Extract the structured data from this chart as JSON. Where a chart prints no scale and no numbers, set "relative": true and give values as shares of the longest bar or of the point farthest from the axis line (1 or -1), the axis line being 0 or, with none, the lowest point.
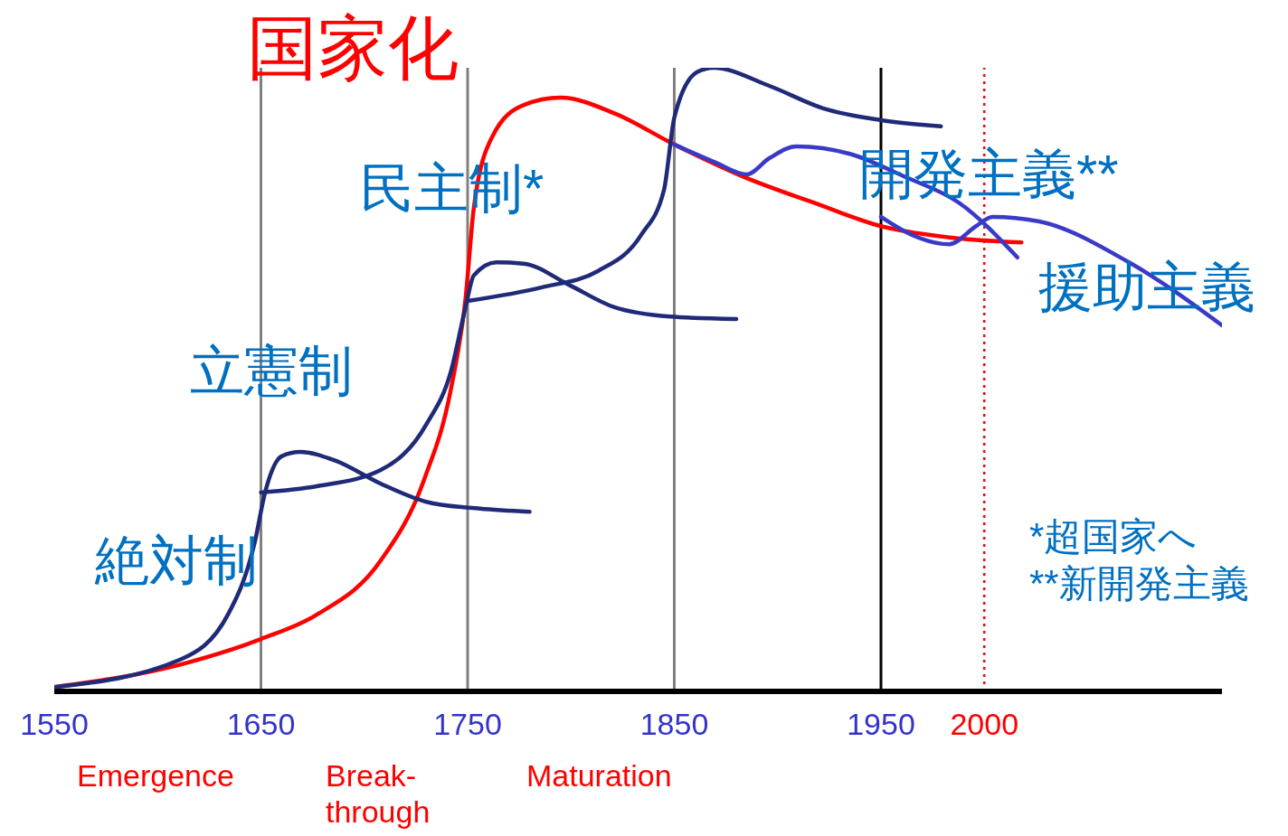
{
  "chart_data": {
    "type": "line",
    "title": "国家化",
    "relative": true,
    "xlim": [
      1550,
      2115
    ],
    "xticks": [
      1550,
      1650,
      1750,
      1850,
      1950,
      2000
    ],
    "series": [
      {
        "color": "#ff0000",
        "x": [
          1550,
          1611,
          1650,
          1677,
          1708,
          1729,
          1742,
          1749,
          1753,
          1762,
          1777,
          1795,
          1821,
          1850,
          1883,
          1918,
          1950,
          1983,
          2018
        ],
        "values": [
          0.007,
          0.043,
          0.084,
          0.123,
          0.21,
          0.34,
          0.486,
          0.63,
          0.775,
          0.89,
          0.94,
          0.952,
          0.927,
          0.877,
          0.826,
          0.783,
          0.746,
          0.728,
          0.72
        ]
      },
      {
        "color": "#1f2a78",
        "x": [
          1550,
          1611,
          1634,
          1647,
          1652,
          1660,
          1669,
          1686,
          1708,
          1730,
          1756,
          1780
        ],
        "values": [
          0.007,
          0.051,
          0.123,
          0.239,
          0.319,
          0.377,
          0.384,
          0.37,
          0.333,
          0.304,
          0.293,
          0.288
        ]
      },
      {
        "color": "#1f2a78",
        "x": [
          1650,
          1677,
          1708,
          1730,
          1742,
          1749,
          1753,
          1764,
          1777,
          1799,
          1821,
          1848,
          1880
        ],
        "values": [
          0.319,
          0.329,
          0.355,
          0.428,
          0.514,
          0.616,
          0.667,
          0.688,
          0.686,
          0.652,
          0.616,
          0.601,
          0.597
        ]
      },
      {
        "color": "#1f2a78",
        "x": [
          1750,
          1786,
          1813,
          1834,
          1845,
          1850,
          1861,
          1869,
          1896,
          1922,
          1950,
          1979
        ],
        "values": [
          0.626,
          0.648,
          0.674,
          0.732,
          0.804,
          0.92,
          0.993,
          1.0,
          0.971,
          0.935,
          0.916,
          0.906
        ]
      },
      {
        "color": "#3a3ac8",
        "x": [
          1850,
          1870,
          1885,
          1896,
          1909,
          1935,
          1961,
          1988,
          2016
        ],
        "values": [
          0.877,
          0.848,
          0.829,
          0.855,
          0.874,
          0.862,
          0.826,
          0.783,
          0.696
        ]
      },
      {
        "color": "#3a3ac8",
        "x": [
          1950,
          1965,
          1983,
          1996,
          2004,
          2026,
          2070,
          2115
        ],
        "values": [
          0.761,
          0.732,
          0.717,
          0.746,
          0.761,
          0.754,
          0.688,
          0.587
        ]
      }
    ],
    "ref_lines": [
      {
        "axis": "x",
        "value": 1650,
        "color": "#808080",
        "line_style": "solid"
      },
      {
        "axis": "x",
        "value": 1750,
        "color": "#808080",
        "line_style": "solid"
      },
      {
        "axis": "x",
        "value": 1850,
        "color": "#808080",
        "line_style": "solid"
      },
      {
        "axis": "x",
        "value": 1950,
        "color": "#000000",
        "line_style": "solid"
      },
      {
        "axis": "x",
        "value": 2000,
        "color": "#ff0000",
        "line_style": "dotted"
      }
    ],
    "annotations": [
      "絶対制",
      "立憲制",
      "民主制*",
      "開発主義**",
      "援助主義",
      "Emergence",
      "Break-through",
      "Maturation",
      "*超国家へ",
      "**新開発主義"
    ]
  }
}
